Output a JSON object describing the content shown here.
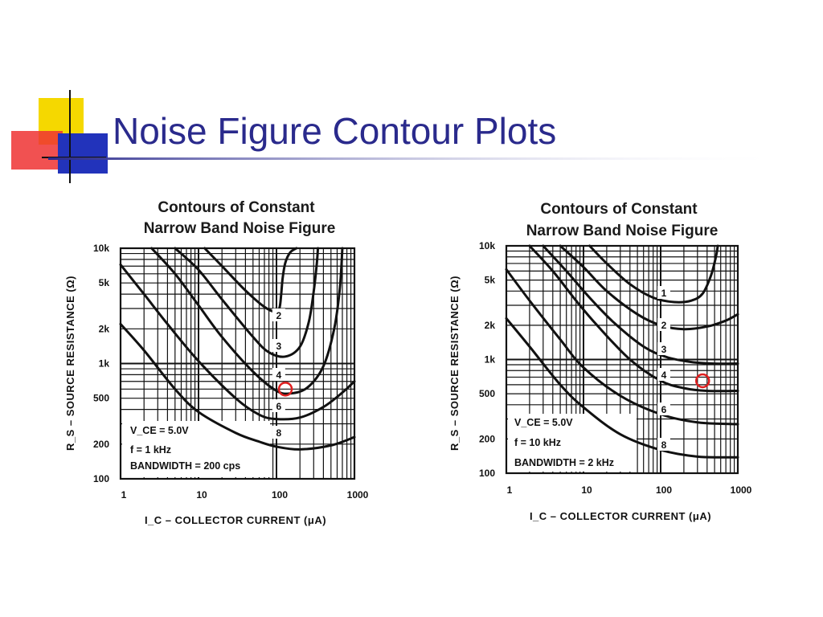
{
  "slide": {
    "title": "Noise Figure Contour Plots",
    "accent_yellow": "#f5d800",
    "accent_red": "#ee3333",
    "accent_blue": "#2233bb",
    "title_color": "#2a2a8c"
  },
  "chart_data": [
    {
      "type": "line",
      "title": [
        "Contours of Constant",
        "Narrow Band Noise Figure"
      ],
      "xlabel": "I_C – COLLECTOR CURRENT (μA)",
      "ylabel": "R_S – SOURCE RESISTANCE (Ω)",
      "x_scale": "log",
      "y_scale": "log",
      "xlim": [
        1,
        1000
      ],
      "ylim": [
        100,
        10000
      ],
      "x_tick_labels": [
        {
          "v": 1,
          "t": "1"
        },
        {
          "v": 10,
          "t": "10"
        },
        {
          "v": 100,
          "t": "100"
        },
        {
          "v": 1000,
          "t": "1000"
        }
      ],
      "y_tick_labels": [
        {
          "v": 10000,
          "t": "10k"
        },
        {
          "v": 5000,
          "t": "5k"
        },
        {
          "v": 2000,
          "t": "2k"
        },
        {
          "v": 1000,
          "t": "1k"
        },
        {
          "v": 500,
          "t": "500"
        },
        {
          "v": 200,
          "t": "200"
        },
        {
          "v": 100,
          "t": "100"
        }
      ],
      "grid": true,
      "annotations": [
        "V_CE = 5.0V",
        "f = 1 kHz",
        "BANDWIDTH = 200 cps"
      ],
      "marker": {
        "x": 130,
        "y": 600,
        "color": "#e02020"
      },
      "series": [
        {
          "name": "2",
          "x": [
            12,
            20,
            40,
            70,
            100,
            110,
            115,
            120,
            130,
            150,
            180
          ],
          "y": [
            10000,
            7000,
            4300,
            3100,
            2800,
            3100,
            4000,
            5500,
            7500,
            9200,
            10000
          ]
        },
        {
          "name": "3",
          "x": [
            5,
            10,
            20,
            50,
            80,
            130,
            200,
            260,
            300,
            330,
            340
          ],
          "y": [
            10000,
            6500,
            3600,
            1700,
            1250,
            1150,
            1400,
            2300,
            4200,
            7500,
            10000
          ]
        },
        {
          "name": "4",
          "x": [
            2.5,
            5,
            10,
            20,
            50,
            100,
            150,
            250,
            400,
            550,
            650,
            700
          ],
          "y": [
            10000,
            6000,
            3200,
            1700,
            850,
            580,
            550,
            620,
            950,
            2000,
            4500,
            10000
          ]
        },
        {
          "name": "6",
          "x": [
            1,
            2,
            4,
            10,
            30,
            60,
            100,
            200,
            400,
            700,
            1000
          ],
          "y": [
            7200,
            4000,
            2200,
            1050,
            500,
            360,
            330,
            340,
            420,
            560,
            700
          ]
        },
        {
          "name": "8",
          "x": [
            1,
            2,
            5,
            10,
            30,
            60,
            100,
            200,
            500,
            1000
          ],
          "y": [
            2200,
            1300,
            600,
            380,
            250,
            210,
            190,
            180,
            195,
            230
          ]
        }
      ]
    },
    {
      "type": "line",
      "title": [
        "Contours of Constant",
        "Narrow Band Noise Figure"
      ],
      "xlabel": "I_C – COLLECTOR CURRENT (μA)",
      "ylabel": "R_S – SOURCE RESISTANCE (Ω)",
      "x_scale": "log",
      "y_scale": "log",
      "xlim": [
        1,
        1000
      ],
      "ylim": [
        100,
        10000
      ],
      "x_tick_labels": [
        {
          "v": 1,
          "t": "1"
        },
        {
          "v": 10,
          "t": "10"
        },
        {
          "v": 100,
          "t": "100"
        },
        {
          "v": 1000,
          "t": "1000"
        }
      ],
      "y_tick_labels": [
        {
          "v": 10000,
          "t": "10k"
        },
        {
          "v": 5000,
          "t": "5k"
        },
        {
          "v": 2000,
          "t": "2k"
        },
        {
          "v": 1000,
          "t": "1k"
        },
        {
          "v": 500,
          "t": "500"
        },
        {
          "v": 200,
          "t": "200"
        },
        {
          "v": 100,
          "t": "100"
        }
      ],
      "grid": true,
      "annotations": [
        "V_CE = 5.0V",
        "f = 10 kHz",
        "BANDWIDTH = 2 kHz"
      ],
      "marker": {
        "x": 350,
        "y": 650,
        "color": "#e02020"
      },
      "series": [
        {
          "name": "1",
          "x": [
            12,
            20,
            40,
            80,
            150,
            250,
            350,
            450,
            520,
            550
          ],
          "y": [
            10000,
            7000,
            4600,
            3500,
            3200,
            3300,
            3800,
            5500,
            8000,
            10000
          ]
        },
        {
          "name": "2",
          "x": [
            5,
            10,
            20,
            50,
            100,
            200,
            400,
            700,
            1000
          ],
          "y": [
            10000,
            6500,
            4000,
            2500,
            2000,
            1850,
            1950,
            2200,
            2500
          ]
        },
        {
          "name": "3",
          "x": [
            3,
            6,
            12,
            25,
            60,
            120,
            250,
            500,
            1000
          ],
          "y": [
            10000,
            6000,
            3500,
            2100,
            1300,
            1050,
            950,
            920,
            920
          ]
        },
        {
          "name": "4",
          "x": [
            2,
            4,
            8,
            15,
            40,
            100,
            200,
            400,
            1000
          ],
          "y": [
            10000,
            6000,
            3300,
            2000,
            1000,
            650,
            560,
            530,
            530
          ]
        },
        {
          "name": "6",
          "x": [
            1,
            2,
            5,
            10,
            30,
            100,
            300,
            1000
          ],
          "y": [
            6200,
            3300,
            1500,
            850,
            480,
            330,
            280,
            270
          ]
        },
        {
          "name": "8",
          "x": [
            1,
            2,
            5,
            10,
            30,
            100,
            300,
            1000
          ],
          "y": [
            2300,
            1300,
            600,
            380,
            220,
            160,
            140,
            138
          ]
        }
      ]
    }
  ]
}
